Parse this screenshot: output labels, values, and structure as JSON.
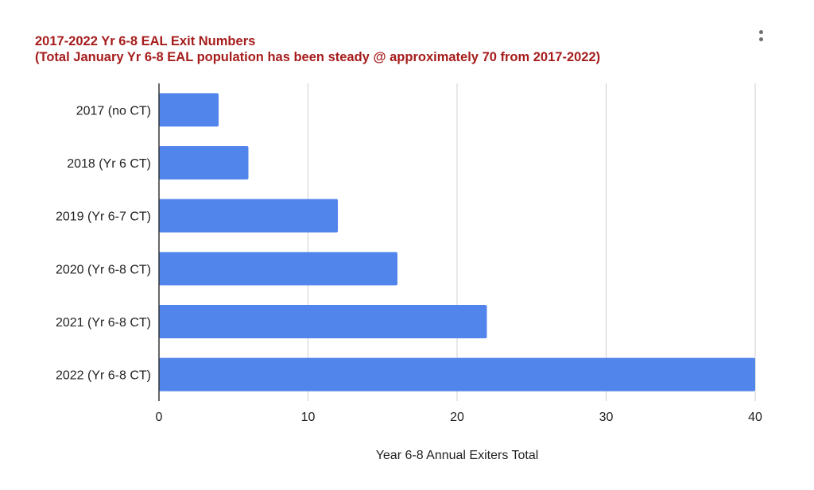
{
  "chart_data": {
    "type": "bar",
    "orientation": "horizontal",
    "title": "2017-2022 Yr 6-8 EAL Exit Numbers",
    "subtitle": "(Total January Yr 6-8 EAL population has been steady @ approximately 70 from 2017-2022)",
    "categories": [
      "2017 (no CT)",
      "2018 (Yr 6 CT)",
      "2019 (Yr 6-7 CT)",
      "2020 (Yr 6-8 CT)",
      "2021 (Yr 6-8 CT)",
      "2022 (Yr 6-8 CT)"
    ],
    "values": [
      4,
      6,
      12,
      16,
      22,
      40
    ],
    "xlabel": "Year 6-8 Annual Exiters Total",
    "ylabel": "",
    "xlim": [
      0,
      40
    ],
    "xticks": [
      "0",
      "10",
      "20",
      "30",
      "40"
    ],
    "grid": "vertical",
    "legend": "none",
    "bar_color": "#5185ec",
    "title_color": "#a61c1c"
  },
  "menu": {
    "icon": "more-vert-icon"
  }
}
